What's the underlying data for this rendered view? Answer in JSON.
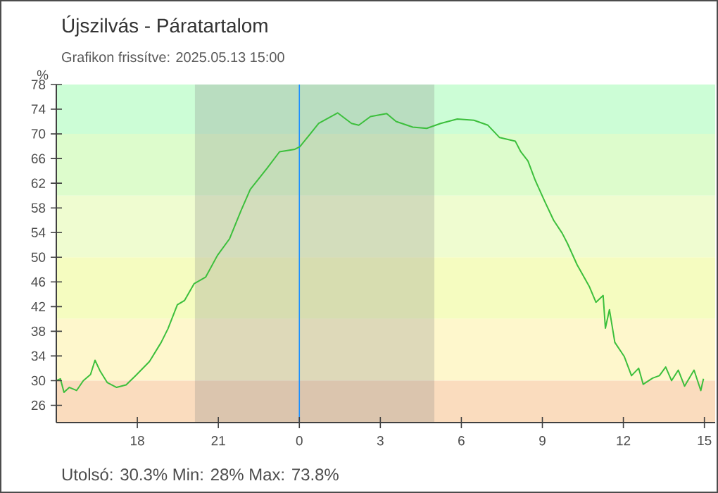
{
  "chart_data": {
    "type": "line",
    "title": "Újszilvás - Páratartalom",
    "subtitle": "Grafikon frissítve: 2025.05.13 15:00",
    "ylabel": "%",
    "annotations": [
      "Utolsó: 30.3%  Min: 28%  Max: 73.8%"
    ],
    "xlim": [
      "2025-05-12T15:00",
      "2025-05-13T15:24"
    ],
    "ylim": [
      23.2,
      78
    ],
    "xticks": [
      {
        "value": "2025-05-12T18:00",
        "label": "18"
      },
      {
        "value": "2025-05-12T21:00",
        "label": "21"
      },
      {
        "value": "2025-05-13T00:00",
        "label": "0"
      },
      {
        "value": "2025-05-13T03:00",
        "label": "3"
      },
      {
        "value": "2025-05-13T06:00",
        "label": "6"
      },
      {
        "value": "2025-05-13T09:00",
        "label": "9"
      },
      {
        "value": "2025-05-13T12:00",
        "label": "12"
      },
      {
        "value": "2025-05-13T15:00",
        "label": "15"
      }
    ],
    "yticks": [
      26,
      30,
      34,
      38,
      42,
      46,
      50,
      54,
      58,
      62,
      66,
      70,
      74,
      78
    ],
    "bands": [
      {
        "axis": "y",
        "from": 70,
        "to": 78,
        "color": "#ccfdd6"
      },
      {
        "axis": "y",
        "from": 60,
        "to": 70,
        "color": "#ddfccc"
      },
      {
        "axis": "y",
        "from": 50,
        "to": 60,
        "color": "#effcd0"
      },
      {
        "axis": "y",
        "from": 40,
        "to": 50,
        "color": "#f5fcc0"
      },
      {
        "axis": "y",
        "from": 30,
        "to": 40,
        "color": "#fef7cc"
      },
      {
        "axis": "y",
        "from": 23.2,
        "to": 30,
        "color": "#fadcbe"
      },
      {
        "axis": "x",
        "from": "2025-05-12T20:08",
        "to": "2025-05-13T05:00",
        "color": "#808080"
      }
    ],
    "ref_lines": [
      {
        "axis": "x",
        "value": "2025-05-13T00:00",
        "color": "#1e90ff"
      }
    ],
    "grid": false,
    "marker": "none",
    "line_style": "solid",
    "series": [
      {
        "color": "#3cbf3c",
        "x": [
          "2025-05-12T15:00",
          "2025-05-12T15:09",
          "2025-05-12T15:17",
          "2025-05-12T15:29",
          "2025-05-12T15:45",
          "2025-05-12T16:00",
          "2025-05-12T16:16",
          "2025-05-12T16:26",
          "2025-05-12T16:37",
          "2025-05-12T16:53",
          "2025-05-12T17:14",
          "2025-05-12T17:35",
          "2025-05-12T17:56",
          "2025-05-12T18:27",
          "2025-05-12T18:53",
          "2025-05-12T19:08",
          "2025-05-12T19:29",
          "2025-05-12T19:45",
          "2025-05-12T20:06",
          "2025-05-12T20:32",
          "2025-05-12T20:58",
          "2025-05-12T21:25",
          "2025-05-12T21:50",
          "2025-05-12T22:11",
          "2025-05-12T22:48",
          "2025-05-12T23:16",
          "2025-05-12T23:50",
          "2025-05-13T00:01",
          "2025-05-13T00:22",
          "2025-05-13T00:43",
          "2025-05-13T01:25",
          "2025-05-13T01:56",
          "2025-05-13T02:12",
          "2025-05-13T02:38",
          "2025-05-13T03:14",
          "2025-05-13T03:35",
          "2025-05-13T04:12",
          "2025-05-13T04:43",
          "2025-05-13T05:14",
          "2025-05-13T05:51",
          "2025-05-13T06:28",
          "2025-05-13T06:59",
          "2025-05-13T07:25",
          "2025-05-13T08:00",
          "2025-05-13T08:12",
          "2025-05-13T08:28",
          "2025-05-13T08:44",
          "2025-05-13T09:05",
          "2025-05-13T09:25",
          "2025-05-13T09:44",
          "2025-05-13T09:56",
          "2025-05-13T10:17",
          "2025-05-13T10:44",
          "2025-05-13T10:59",
          "2025-05-13T11:15",
          "2025-05-13T11:20",
          "2025-05-13T11:29",
          "2025-05-13T11:41",
          "2025-05-13T12:02",
          "2025-05-13T12:18",
          "2025-05-13T12:34",
          "2025-05-13T12:44",
          "2025-05-13T13:05",
          "2025-05-13T13:20",
          "2025-05-13T13:34",
          "2025-05-13T13:47",
          "2025-05-13T14:02",
          "2025-05-13T14:16",
          "2025-05-13T14:37",
          "2025-05-13T14:52",
          "2025-05-13T14:58"
        ],
        "values": [
          30.0,
          30.3,
          28.1,
          28.9,
          28.4,
          30.0,
          31.0,
          33.3,
          31.6,
          29.7,
          28.9,
          29.3,
          30.8,
          33.1,
          36.2,
          38.4,
          42.3,
          43.0,
          45.7,
          46.8,
          50.3,
          53.0,
          57.5,
          61.0,
          64.4,
          67.1,
          67.5,
          67.9,
          69.8,
          71.7,
          73.4,
          71.7,
          71.4,
          72.8,
          73.3,
          72.0,
          71.1,
          70.9,
          71.7,
          72.4,
          72.2,
          71.4,
          69.4,
          68.8,
          67.1,
          65.6,
          62.5,
          59.1,
          56.0,
          53.9,
          52.2,
          48.8,
          45.3,
          42.7,
          43.8,
          38.5,
          41.5,
          36.2,
          33.9,
          30.8,
          32.0,
          29.4,
          30.4,
          30.8,
          32.2,
          30.0,
          31.7,
          29.1,
          31.7,
          28.4,
          30.3
        ]
      }
    ]
  }
}
